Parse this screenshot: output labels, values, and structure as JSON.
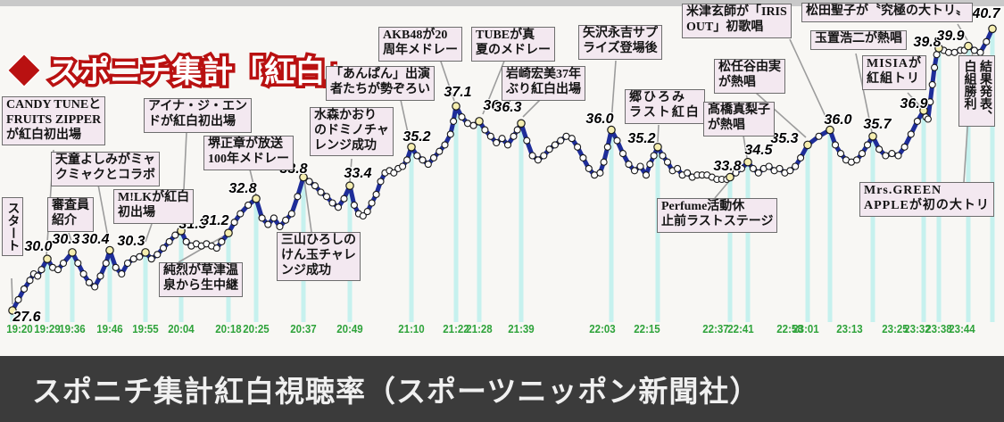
{
  "page": {
    "title_diamond": "◆",
    "title_text": "スポニチ集計「紅白」視聴率",
    "caption": "スポニチ集計紅白視聴率（スポーツニッポン新聞社）"
  },
  "chart_data": {
    "type": "line",
    "title": "スポニチ集計「紅白」視聴率",
    "series_name": "視聴率(%)",
    "x_axis_labels": [
      "19:20",
      "19:29",
      "19:36",
      "19:46",
      "19:55",
      "20:04",
      "20:18",
      "20:25",
      "20:37",
      "20:49",
      "21:10",
      "21:22",
      "21:28",
      "21:39",
      "22:03",
      "22:15",
      "22:37",
      "22:41",
      "22:58",
      "23:01",
      "23:13",
      "23:25",
      "23:32",
      "23:38",
      "23:44"
    ],
    "points": [
      {
        "time": "19:20",
        "value": 27.6
      },
      {
        "time": "19:29",
        "value": 30.0
      },
      {
        "time": "19:36",
        "value": 30.3
      },
      {
        "time": "19:46",
        "value": 30.4
      },
      {
        "time": "19:55",
        "value": 30.3
      },
      {
        "time": "20:04",
        "value": 31.3
      },
      {
        "time": "20:18",
        "value": 31.2
      },
      {
        "time": "20:25",
        "value": 32.8
      },
      {
        "time": "20:37",
        "value": 33.8
      },
      {
        "time": "20:49",
        "value": 33.4
      },
      {
        "time": "21:10",
        "value": 35.2
      },
      {
        "time": "21:22",
        "value": 37.1
      },
      {
        "time": "21:28",
        "value": 36.4
      },
      {
        "time": "21:39",
        "value": 36.3
      },
      {
        "time": "22:03",
        "value": 36.0
      },
      {
        "time": "22:15",
        "value": 35.2
      },
      {
        "time": "22:37",
        "value": 33.8
      },
      {
        "time": "22:41",
        "value": 34.5
      },
      {
        "time": "22:58",
        "value": 35.3
      },
      {
        "time": "23:01",
        "value": 36.0
      },
      {
        "time": "23:13",
        "value": 35.7
      },
      {
        "time": "23:25",
        "value": 36.9
      },
      {
        "time": "23:32",
        "value": 39.8
      },
      {
        "time": "23:38",
        "value": 39.9
      },
      {
        "time": "23:44",
        "value": 40.7
      }
    ],
    "path": [
      [
        0,
        27.6
      ],
      [
        1.5,
        28.1
      ],
      [
        3,
        28.6
      ],
      [
        4.5,
        29.0
      ],
      [
        5.5,
        29.3
      ],
      [
        6.5,
        29.2
      ],
      [
        7.5,
        29.5
      ],
      [
        9,
        30.0
      ],
      [
        10.5,
        29.6
      ],
      [
        12,
        29.5
      ],
      [
        13.5,
        29.8
      ],
      [
        16,
        30.3
      ],
      [
        17.5,
        29.8
      ],
      [
        19,
        29.3
      ],
      [
        20.5,
        28.9
      ],
      [
        22,
        28.7
      ],
      [
        23.5,
        29.2
      ],
      [
        25,
        29.8
      ],
      [
        26,
        30.4
      ],
      [
        27.5,
        29.6
      ],
      [
        29,
        29.3
      ],
      [
        30.5,
        29.8
      ],
      [
        32,
        30.0
      ],
      [
        33.5,
        30.1
      ],
      [
        35,
        30.3
      ],
      [
        36.5,
        30.0
      ],
      [
        38,
        30.2
      ],
      [
        39.5,
        30.5
      ],
      [
        41,
        30.8
      ],
      [
        42.5,
        31.1
      ],
      [
        44,
        31.3
      ],
      [
        45.5,
        30.8
      ],
      [
        47,
        30.6
      ],
      [
        48.5,
        30.7
      ],
      [
        50,
        30.6
      ],
      [
        51.5,
        30.7
      ],
      [
        53,
        30.6
      ],
      [
        54.5,
        30.5
      ],
      [
        56,
        30.8
      ],
      [
        58,
        31.2
      ],
      [
        59.5,
        31.7
      ],
      [
        61,
        32.1
      ],
      [
        63,
        32.5
      ],
      [
        65,
        32.8
      ],
      [
        66.5,
        31.9
      ],
      [
        68,
        31.6
      ],
      [
        69.5,
        31.9
      ],
      [
        71,
        31.5
      ],
      [
        72.5,
        31.8
      ],
      [
        74,
        32.1
      ],
      [
        75.5,
        32.9
      ],
      [
        77,
        33.8
      ],
      [
        78.5,
        33.6
      ],
      [
        80,
        33.4
      ],
      [
        81.5,
        33.1
      ],
      [
        83,
        32.9
      ],
      [
        84.5,
        32.6
      ],
      [
        86,
        32.4
      ],
      [
        87.5,
        32.8
      ],
      [
        89,
        33.4
      ],
      [
        90.5,
        32.5
      ],
      [
        92,
        32.1
      ],
      [
        93.5,
        32.0
      ],
      [
        95,
        32.2
      ],
      [
        96.5,
        32.6
      ],
      [
        98,
        33.0
      ],
      [
        99.5,
        33.6
      ],
      [
        101,
        34.0
      ],
      [
        102.5,
        34.1
      ],
      [
        104,
        34.0
      ],
      [
        105.5,
        34.2
      ],
      [
        107,
        34.3
      ],
      [
        108.5,
        34.6
      ],
      [
        110,
        35.2
      ],
      [
        111.5,
        34.8
      ],
      [
        113,
        34.6
      ],
      [
        114.5,
        34.4
      ],
      [
        116,
        34.7
      ],
      [
        117.5,
        35.0
      ],
      [
        119,
        35.3
      ],
      [
        120.5,
        35.8
      ],
      [
        121.3,
        36.4
      ],
      [
        122,
        37.1
      ],
      [
        123.5,
        36.6
      ],
      [
        125,
        36.3
      ],
      [
        126.5,
        36.2
      ],
      [
        128,
        36.4
      ],
      [
        129.5,
        36.0
      ],
      [
        131,
        35.7
      ],
      [
        132.5,
        35.4
      ],
      [
        134,
        35.6
      ],
      [
        135.5,
        35.3
      ],
      [
        137,
        35.7
      ],
      [
        138,
        36.0
      ],
      [
        139,
        36.3
      ],
      [
        140.5,
        35.5
      ],
      [
        142,
        34.8
      ],
      [
        143.5,
        34.6
      ],
      [
        145,
        34.8
      ],
      [
        146.5,
        35.1
      ],
      [
        148,
        35.3
      ],
      [
        149.5,
        35.5
      ],
      [
        151,
        35.7
      ],
      [
        152.5,
        35.6
      ],
      [
        154,
        35.2
      ],
      [
        155.5,
        34.7
      ],
      [
        157,
        34.2
      ],
      [
        158.5,
        33.9
      ],
      [
        160,
        34.0
      ],
      [
        161,
        34.5
      ],
      [
        162,
        35.2
      ],
      [
        163,
        36.0
      ],
      [
        164.5,
        35.5
      ],
      [
        166,
        34.9
      ],
      [
        167.5,
        34.4
      ],
      [
        169,
        34.1
      ],
      [
        170.5,
        34.3
      ],
      [
        172,
        33.9
      ],
      [
        173,
        34.4
      ],
      [
        174,
        34.8
      ],
      [
        175,
        35.2
      ],
      [
        176.5,
        34.8
      ],
      [
        178,
        34.5
      ],
      [
        179.5,
        34.1
      ],
      [
        181,
        34.2
      ],
      [
        182.5,
        33.9
      ],
      [
        184,
        34.0
      ],
      [
        185.5,
        33.8
      ],
      [
        187,
        33.9
      ],
      [
        188.5,
        33.9
      ],
      [
        190,
        33.9
      ],
      [
        191.5,
        33.8
      ],
      [
        193,
        33.7
      ],
      [
        194.5,
        33.7
      ],
      [
        196,
        33.7
      ],
      [
        197,
        33.8
      ],
      [
        198.3,
        34.0
      ],
      [
        199.6,
        34.2
      ],
      [
        201,
        34.5
      ],
      [
        202.5,
        34.2
      ],
      [
        204,
        34.0
      ],
      [
        205.5,
        34.2
      ],
      [
        207,
        34.3
      ],
      [
        208.5,
        34.1
      ],
      [
        210,
        34.2
      ],
      [
        211.5,
        34.0
      ],
      [
        213,
        34.1
      ],
      [
        214.5,
        34.3
      ],
      [
        216,
        34.7
      ],
      [
        218,
        35.3
      ],
      [
        219.5,
        35.7
      ],
      [
        221,
        36.0
      ],
      [
        222.5,
        35.3
      ],
      [
        224,
        34.9
      ],
      [
        225.5,
        34.6
      ],
      [
        227,
        34.5
      ],
      [
        228.5,
        34.6
      ],
      [
        230,
        34.9
      ],
      [
        231.5,
        35.3
      ],
      [
        233,
        35.7
      ],
      [
        234.5,
        35.1
      ],
      [
        236,
        34.8
      ],
      [
        237.5,
        34.9
      ],
      [
        239,
        34.8
      ],
      [
        240.5,
        35.2
      ],
      [
        242,
        35.8
      ],
      [
        243.5,
        36.4
      ],
      [
        245,
        36.9
      ],
      [
        246,
        36.6
      ],
      [
        247,
        36.5
      ],
      [
        248,
        37.3
      ],
      [
        249,
        38.1
      ],
      [
        250,
        38.9
      ],
      [
        251,
        39.5
      ],
      [
        252,
        39.8
      ],
      [
        253,
        39.7
      ],
      [
        254,
        39.6
      ],
      [
        255.2,
        39.6
      ],
      [
        256.4,
        39.7
      ],
      [
        257.2,
        39.7
      ],
      [
        258,
        39.9
      ],
      [
        259.5,
        39.7
      ],
      [
        261,
        39.6
      ],
      [
        262.5,
        40.1
      ],
      [
        264,
        40.7
      ]
    ],
    "annotations": [
      {
        "id": "start",
        "lines": [
          "スタート"
        ]
      },
      {
        "id": "candy",
        "lines": [
          "CANDY TUNEと",
          "FRUITS ZIPPER",
          "が紅白初出場"
        ]
      },
      {
        "id": "shinsain",
        "lines": [
          "審査員",
          "紹介"
        ]
      },
      {
        "id": "tendo",
        "lines": [
          "天童よしみがミャ",
          "クミャクとコラボ"
        ]
      },
      {
        "id": "milk",
        "lines": [
          "M!LKが紅白",
          "初出場"
        ]
      },
      {
        "id": "aina",
        "lines": [
          "アイナ・ジ・エン",
          "ドが紅白初出場"
        ]
      },
      {
        "id": "sakai",
        "lines": [
          "堺正章が放送",
          "100年メドレー"
        ]
      },
      {
        "id": "junretsu",
        "lines": [
          "純烈が草津温",
          "泉から生中継"
        ]
      },
      {
        "id": "miyama",
        "lines": [
          "三山ひろしの",
          "けん玉チャレ",
          "ンジ成功"
        ]
      },
      {
        "id": "mizumori",
        "lines": [
          "水森かおり",
          "のドミノチャ",
          "レンジ成功"
        ]
      },
      {
        "id": "anpan",
        "lines": [
          "「あんぱん」出演",
          "者たちが勢ぞろい"
        ]
      },
      {
        "id": "akb",
        "lines": [
          "AKB48が20",
          "周年メドレー"
        ]
      },
      {
        "id": "tube",
        "lines": [
          "TUBEが真",
          "夏のメドレー"
        ]
      },
      {
        "id": "iwasaki",
        "lines": [
          "岩崎宏美37年",
          "ぶり紅白出場"
        ]
      },
      {
        "id": "yazawa",
        "lines": [
          "矢沢永吉サプ",
          "ライズ登場後"
        ]
      },
      {
        "id": "go",
        "lines": [
          "郷ひろみ",
          "ラスト紅白"
        ]
      },
      {
        "id": "perfume",
        "lines": [
          "Perfume活動休",
          "止前ラストステージ"
        ]
      },
      {
        "id": "takahashi",
        "lines": [
          "髙橋真梨子",
          "が熱唱"
        ]
      },
      {
        "id": "matsutoya",
        "lines": [
          "松任谷由実",
          "が熱唱"
        ]
      },
      {
        "id": "yonezu",
        "lines": [
          "米津玄師が「IRIS",
          "OUT」初歌唱"
        ]
      },
      {
        "id": "tamaki",
        "lines": [
          "玉置浩二が熱唱"
        ]
      },
      {
        "id": "matsuda",
        "lines": [
          "松田聖子が〝究極の大トリ〟"
        ]
      },
      {
        "id": "misia",
        "lines": [
          "MISIAが",
          "紅組トリ"
        ]
      },
      {
        "id": "mrsgreen",
        "lines": [
          "Mrs.GREEN",
          "APPLEが初の大トリ"
        ]
      },
      {
        "id": "kekka",
        "lines": [
          "結果発表、",
          "白組勝利"
        ]
      }
    ],
    "colors": {
      "line": "#1e2d99",
      "marker_fill": "#ffffff",
      "highlight_fill": "#f5eeb0",
      "stripe": "#c6f1ee",
      "time_label": "#2fa33b",
      "title_red": "#b91111",
      "annotation_bg": "#f3e8f0",
      "caption_bg": "#3b3b3b"
    }
  }
}
